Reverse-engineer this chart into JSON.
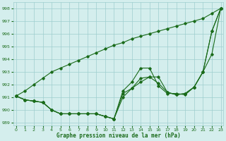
{
  "line1_y": [
    991.1,
    990.8,
    990.7,
    990.6,
    990.0,
    989.7,
    989.7,
    989.7,
    989.7,
    989.7,
    989.5,
    989.3,
    991.5,
    992.2,
    993.3,
    993.3,
    991.9,
    991.3,
    991.3,
    991.2,
    991.8,
    993.0,
    994.4,
    998.0
  ],
  "line2_y": [
    991.1,
    990.8,
    990.7,
    990.6,
    990.0,
    989.7,
    989.7,
    989.7,
    989.7,
    989.7,
    989.5,
    989.3,
    991.0,
    991.7,
    992.2,
    992.6,
    992.1,
    991.4,
    991.2,
    991.3,
    991.8,
    993.0,
    996.2,
    998.0
  ],
  "line3_y": [
    991.1,
    990.8,
    990.7,
    990.6,
    990.0,
    989.7,
    989.7,
    989.7,
    989.7,
    989.7,
    989.5,
    989.3,
    991.3,
    991.7,
    992.5,
    992.6,
    992.6,
    991.4,
    991.2,
    991.3,
    991.8,
    993.0,
    996.2,
    998.0
  ],
  "line_top_y": [
    991.1,
    991.5,
    992.0,
    992.5,
    993.0,
    993.3,
    993.6,
    993.9,
    994.2,
    994.5,
    994.8,
    995.1,
    995.3,
    995.6,
    995.8,
    996.0,
    996.2,
    996.4,
    996.6,
    996.8,
    997.0,
    997.2,
    997.6,
    998.0
  ],
  "x": [
    0,
    1,
    2,
    3,
    4,
    5,
    6,
    7,
    8,
    9,
    10,
    11,
    12,
    13,
    14,
    15,
    16,
    17,
    18,
    19,
    20,
    21,
    22,
    23
  ],
  "line_color": "#1a6b1a",
  "bg_color": "#d4eeed",
  "grid_color": "#9ecece",
  "xlabel": "Graphe pression niveau de la mer (hPa)",
  "ylim": [
    988.8,
    998.5
  ],
  "yticks": [
    989,
    990,
    991,
    992,
    993,
    994,
    995,
    996,
    997,
    998
  ],
  "xticks": [
    0,
    1,
    2,
    3,
    4,
    5,
    6,
    7,
    8,
    9,
    10,
    11,
    12,
    13,
    14,
    15,
    16,
    17,
    18,
    19,
    20,
    21,
    22,
    23
  ]
}
